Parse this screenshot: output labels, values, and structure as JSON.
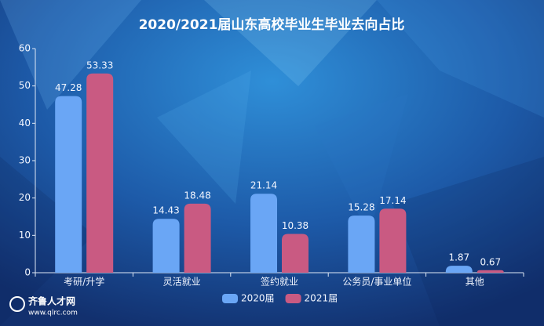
{
  "chart_data": {
    "type": "bar",
    "title": "2020/2021届山东高校毕业生毕业去向占比",
    "categories": [
      "考研/升学",
      "灵活就业",
      "签约就业",
      "公务员/事业单位",
      "其他"
    ],
    "series": [
      {
        "name": "2020届",
        "color": "#6aa6f5",
        "values": [
          47.28,
          14.43,
          21.14,
          15.28,
          1.87
        ]
      },
      {
        "name": "2021届",
        "color": "#c95a82",
        "values": [
          53.33,
          18.48,
          10.38,
          17.14,
          0.67
        ]
      }
    ],
    "ylim": [
      0,
      60
    ],
    "yticks": [
      0,
      10,
      20,
      30,
      40,
      50,
      60
    ],
    "grid": false,
    "legend": "bottom"
  },
  "watermark": {
    "name": "齐鲁人才网",
    "url": "www.qlrc.com"
  }
}
